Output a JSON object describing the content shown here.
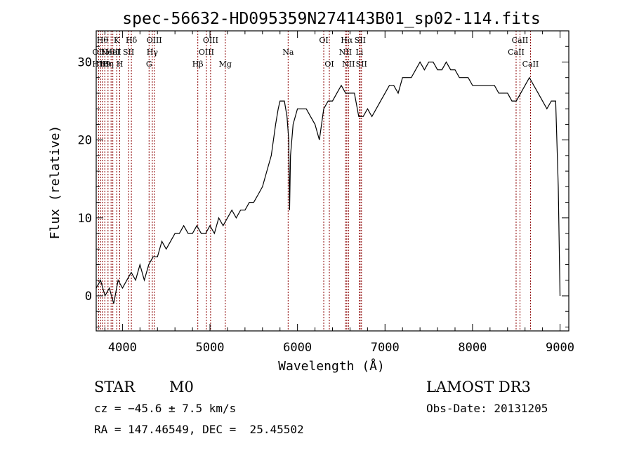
{
  "chart_data": {
    "type": "line",
    "title": "spec-56632-HD095359N274143B01_sp02-114.fits",
    "xlabel": "Wavelength (Å)",
    "ylabel": "Flux (relative)",
    "xlim": [
      3700,
      9100
    ],
    "ylim": [
      -4.5,
      34
    ],
    "x_ticks": [
      4000,
      5000,
      6000,
      7000,
      8000,
      9000
    ],
    "y_ticks": [
      0,
      10,
      20,
      30
    ],
    "grid": false,
    "line_color": "#000000",
    "marker_color": "#8b0000",
    "spectrum": {
      "x": [
        3700,
        3750,
        3800,
        3850,
        3900,
        3950,
        4000,
        4050,
        4100,
        4150,
        4200,
        4250,
        4300,
        4350,
        4400,
        4450,
        4500,
        4550,
        4600,
        4650,
        4700,
        4750,
        4800,
        4850,
        4900,
        4950,
        5000,
        5050,
        5100,
        5150,
        5200,
        5250,
        5300,
        5350,
        5400,
        5450,
        5500,
        5550,
        5600,
        5650,
        5700,
        5750,
        5780,
        5800,
        5850,
        5880,
        5900,
        5910,
        5920,
        5950,
        6000,
        6050,
        6100,
        6150,
        6200,
        6250,
        6300,
        6350,
        6400,
        6450,
        6500,
        6550,
        6600,
        6650,
        6700,
        6750,
        6800,
        6850,
        6900,
        6950,
        7000,
        7050,
        7100,
        7150,
        7200,
        7250,
        7300,
        7350,
        7400,
        7450,
        7500,
        7550,
        7600,
        7650,
        7700,
        7750,
        7800,
        7850,
        7900,
        7950,
        8000,
        8050,
        8100,
        8150,
        8200,
        8250,
        8300,
        8350,
        8400,
        8450,
        8500,
        8550,
        8600,
        8650,
        8700,
        8750,
        8800,
        8850,
        8900,
        8950,
        8980,
        9000
      ],
      "y": [
        1,
        2,
        0,
        1,
        -1,
        2,
        1,
        2,
        3,
        2,
        4,
        2,
        4,
        5,
        5,
        7,
        6,
        7,
        8,
        8,
        9,
        8,
        8,
        9,
        8,
        8,
        9,
        8,
        10,
        9,
        10,
        11,
        10,
        11,
        11,
        12,
        12,
        13,
        14,
        16,
        18,
        22,
        24,
        25,
        25,
        23,
        20,
        11,
        18,
        22,
        24,
        24,
        24,
        23,
        22,
        20,
        24,
        25,
        25,
        26,
        27,
        26,
        26,
        26,
        23,
        23,
        24,
        23,
        24,
        25,
        26,
        27,
        27,
        26,
        28,
        28,
        28,
        29,
        30,
        29,
        30,
        30,
        29,
        29,
        30,
        29,
        29,
        28,
        28,
        28,
        27,
        27,
        27,
        27,
        27,
        27,
        26,
        26,
        26,
        25,
        25,
        26,
        27,
        28,
        27,
        26,
        25,
        24,
        25,
        25,
        14,
        0
      ]
    },
    "line_markers": [
      {
        "wavelength": 3727,
        "label": "OII",
        "row": 2
      },
      {
        "wavelength": 3750,
        "label": "H10",
        "row": 3
      },
      {
        "wavelength": 3771,
        "label": "Hθ",
        "row": 1
      },
      {
        "wavelength": 3798,
        "label": "H9",
        "row": 3
      },
      {
        "wavelength": 3835,
        "label": "Hη",
        "row": 3
      },
      {
        "wavelength": 3870,
        "label": "NeIII",
        "row": 2
      },
      {
        "wavelength": 3890,
        "label": "HeI",
        "row": 2
      },
      {
        "wavelength": 3934,
        "label": "K",
        "row": 1
      },
      {
        "wavelength": 3969,
        "label": "H",
        "row": 3
      },
      {
        "wavelength": 4070,
        "label": "SII",
        "row": 2
      },
      {
        "wavelength": 4102,
        "label": "Hδ",
        "row": 1
      },
      {
        "wavelength": 4304,
        "label": "G",
        "row": 3
      },
      {
        "wavelength": 4341,
        "label": "Hγ",
        "row": 2
      },
      {
        "wavelength": 4363,
        "label": "OIII",
        "row": 1
      },
      {
        "wavelength": 4861,
        "label": "Hβ",
        "row": 3
      },
      {
        "wavelength": 4959,
        "label": "OIII",
        "row": 2
      },
      {
        "wavelength": 5007,
        "label": "OIII",
        "row": 1
      },
      {
        "wavelength": 5175,
        "label": "Mg",
        "row": 3
      },
      {
        "wavelength": 5893,
        "label": "Na",
        "row": 2
      },
      {
        "wavelength": 6300,
        "label": "OI",
        "row": 1
      },
      {
        "wavelength": 6364,
        "label": "OI",
        "row": 3
      },
      {
        "wavelength": 6548,
        "label": "NII",
        "row": 2
      },
      {
        "wavelength": 6563,
        "label": "Hα",
        "row": 1
      },
      {
        "wavelength": 6583,
        "label": "NII",
        "row": 3
      },
      {
        "wavelength": 6708,
        "label": "Li",
        "row": 2
      },
      {
        "wavelength": 6716,
        "label": "SII",
        "row": 1
      },
      {
        "wavelength": 6731,
        "label": "SII",
        "row": 3
      },
      {
        "wavelength": 8498,
        "label": "CaII",
        "row": 2
      },
      {
        "wavelength": 8542,
        "label": "CaII",
        "row": 1
      },
      {
        "wavelength": 8662,
        "label": "CaII",
        "row": 3
      }
    ]
  },
  "info": {
    "class": "STAR",
    "subclass": "M0",
    "survey": "LAMOST DR3",
    "cz": "cz = −45.6 ± 7.5 km/s",
    "obs_date": "Obs-Date: 20131205",
    "coords": "RA = 147.46549, DEC =  25.45502"
  }
}
